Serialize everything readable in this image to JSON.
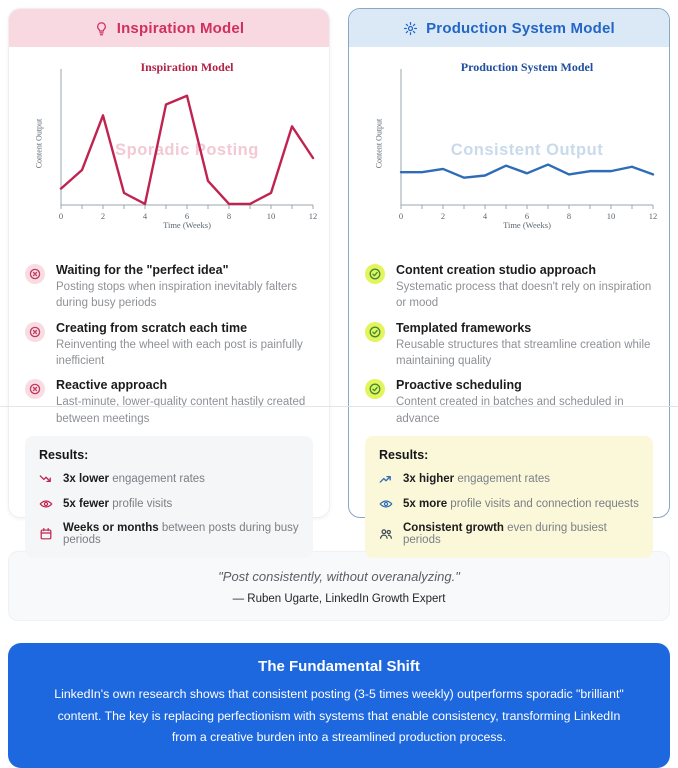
{
  "colors": {
    "pink_header_bg": "#f9d9e1",
    "pink_accent": "#d0305f",
    "crimson_line": "#c0234f",
    "pink_watermark": "#f2c9d4",
    "blue_header_bg": "#dbe9f7",
    "blue_accent": "#2366c5",
    "blue_line": "#2e6cb5",
    "blue_watermark": "#c9daeb",
    "lime_badge_bg": "#e4f45c",
    "green_check": "#3d8b37",
    "pink_badge_bg": "#f8dce3",
    "results_gray_bg": "#f5f6f7",
    "results_yellow_bg": "#fbf8d9",
    "quote_bg": "#f8f9fb",
    "banner_bg": "#1e68df"
  },
  "panels": {
    "inspiration": {
      "header": {
        "icon": "lightbulb-icon",
        "title": "Inspiration Model"
      },
      "bullets": [
        {
          "icon": "circle-x-icon",
          "title": "Waiting for the \"perfect idea\"",
          "desc": "Posting stops when inspiration inevitably falters during busy periods"
        },
        {
          "icon": "circle-x-icon",
          "title": "Creating from scratch each time",
          "desc": "Reinventing the wheel with each post is painfully inefficient"
        },
        {
          "icon": "circle-x-icon",
          "title": "Reactive approach",
          "desc": "Last-minute, lower-quality content hastily created between meetings"
        }
      ],
      "results": {
        "heading": "Results:",
        "items": [
          {
            "icon": "trending-down-icon",
            "bold": "3x lower",
            "rest": " engagement rates"
          },
          {
            "icon": "eye-icon",
            "bold": "5x fewer",
            "rest": " profile visits"
          },
          {
            "icon": "calendar-icon",
            "bold": "Weeks or months",
            "rest": " between posts during busy periods"
          }
        ]
      }
    },
    "production": {
      "header": {
        "icon": "gear-icon",
        "title": "Production System Model"
      },
      "bullets": [
        {
          "icon": "circle-check-icon",
          "title": "Content creation studio approach",
          "desc": "Systematic process that doesn't rely on inspiration or mood"
        },
        {
          "icon": "circle-check-icon",
          "title": "Templated frameworks",
          "desc": "Reusable structures that streamline creation while maintaining quality"
        },
        {
          "icon": "circle-check-icon",
          "title": "Proactive scheduling",
          "desc": "Content created in batches and scheduled in advance"
        }
      ],
      "results": {
        "heading": "Results:",
        "items": [
          {
            "icon": "trending-up-icon",
            "bold": "3x higher",
            "rest": " engagement rates"
          },
          {
            "icon": "eye-icon",
            "bold": "5x more",
            "rest": " profile visits and connection requests"
          },
          {
            "icon": "people-icon",
            "bold": "Consistent growth",
            "rest": " even during busiest periods"
          }
        ]
      }
    }
  },
  "chart_data": [
    {
      "type": "line",
      "title": "Inspiration Model",
      "watermark": "Sporadic Posting",
      "xlabel": "Time (Weeks)",
      "ylabel": "Content Output",
      "x": [
        0,
        1,
        2,
        3,
        4,
        5,
        6,
        7,
        8,
        9,
        10,
        11,
        12
      ],
      "values": [
        1.5,
        3.2,
        8.2,
        1.1,
        0.1,
        9.2,
        10,
        2.2,
        0.1,
        0.1,
        1.1,
        7.2,
        4.3
      ],
      "xticks": [
        0,
        2,
        4,
        6,
        8,
        10,
        12
      ],
      "xlim": [
        0,
        12
      ],
      "ylim": [
        0,
        10.8
      ],
      "grid": false,
      "legend": "none",
      "color": "#c0234f"
    },
    {
      "type": "line",
      "title": "Production System Model",
      "watermark": "Consistent Output",
      "xlabel": "Time (Weeks)",
      "ylabel": "Content Output",
      "x": [
        0,
        1,
        2,
        3,
        4,
        5,
        6,
        7,
        8,
        9,
        10,
        11,
        12
      ],
      "values": [
        3,
        3,
        3.3,
        2.5,
        2.7,
        3.6,
        2.9,
        3.7,
        2.8,
        3.1,
        3.1,
        3.5,
        2.8
      ],
      "xticks": [
        0,
        2,
        4,
        6,
        8,
        10,
        12
      ],
      "xlim": [
        0,
        12
      ],
      "ylim": [
        0,
        10.8
      ],
      "grid": false,
      "legend": "none",
      "color": "#2e6cb5"
    }
  ],
  "quote": {
    "text": "\"Post consistently, without overanalyzing.\"",
    "attribution": "— Ruben Ugarte, LinkedIn Growth Expert"
  },
  "banner": {
    "title": "The Fundamental Shift",
    "body": "LinkedIn's own research shows that consistent posting (3-5 times weekly) outperforms sporadic \"brilliant\" content. The key is replacing perfectionism with systems that enable consistency, transforming LinkedIn from a creative burden into a streamlined production process."
  }
}
